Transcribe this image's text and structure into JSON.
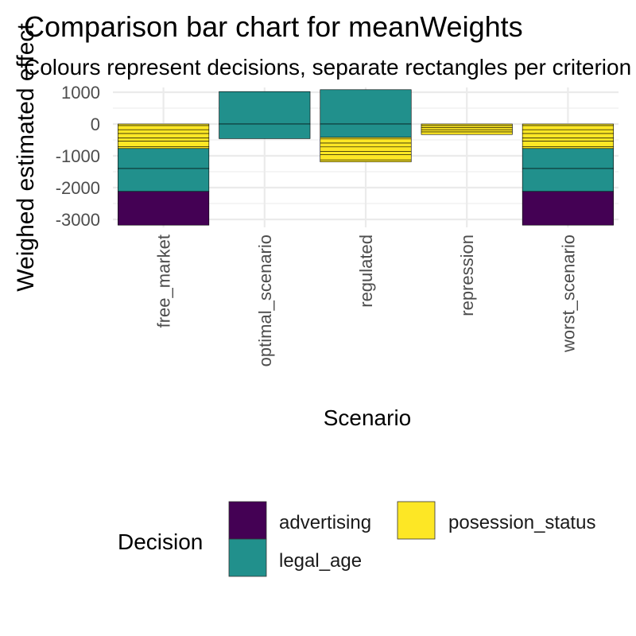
{
  "chart_data": {
    "type": "bar",
    "stacked": true,
    "title": "Comparison bar chart for meanWeights",
    "subtitle": "Colours represent decisions, separate rectangles per criterion",
    "xlabel": "Scenario",
    "ylabel": "Weighed estimated effect",
    "ylim": [
      -3250,
      1150
    ],
    "yticks": [
      1000,
      0,
      -1000,
      -2000,
      -3000
    ],
    "yticklabels": [
      "1000",
      "0",
      "-1000",
      "-2000",
      "-3000"
    ],
    "categories": [
      "free_market",
      "optimal_scenario",
      "regulated",
      "repression",
      "worst_scenario"
    ],
    "grid": true,
    "legend": {
      "title": "Decision",
      "position": "bottom",
      "entries": [
        {
          "label": "advertising",
          "color": "#440154"
        },
        {
          "label": "legal_age",
          "color": "#21908C"
        },
        {
          "label": "posession_status",
          "color": "#FDE725"
        }
      ]
    },
    "colors": {
      "advertising": "#440154",
      "legal_age": "#21908C",
      "posession_status": "#FDE725"
    },
    "segments": [
      {
        "category": "free_market",
        "decision": "posession_status",
        "values": [
          -50,
          -130,
          -120,
          -140,
          -100,
          -170,
          -60
        ]
      },
      {
        "category": "free_market",
        "decision": "legal_age",
        "values": [
          -630,
          -720
        ]
      },
      {
        "category": "free_market",
        "decision": "advertising",
        "values": [
          -1060
        ]
      },
      {
        "category": "optimal_scenario",
        "decision": "legal_age",
        "values": [
          1020,
          -460
        ]
      },
      {
        "category": "regulated",
        "decision": "legal_age",
        "values": [
          1080,
          -420
        ]
      },
      {
        "category": "regulated",
        "decision": "posession_status",
        "values": [
          -50,
          -130,
          -120,
          -140,
          -100,
          -170,
          -60
        ]
      },
      {
        "category": "repression",
        "decision": "posession_status",
        "values": [
          -50,
          -60,
          -70,
          -70,
          -80
        ]
      },
      {
        "category": "worst_scenario",
        "decision": "posession_status",
        "values": [
          -50,
          -130,
          -120,
          -140,
          -100,
          -170,
          -60
        ]
      },
      {
        "category": "worst_scenario",
        "decision": "legal_age",
        "values": [
          -630,
          -720
        ]
      },
      {
        "category": "worst_scenario",
        "decision": "advertising",
        "values": [
          -1060
        ]
      }
    ]
  }
}
